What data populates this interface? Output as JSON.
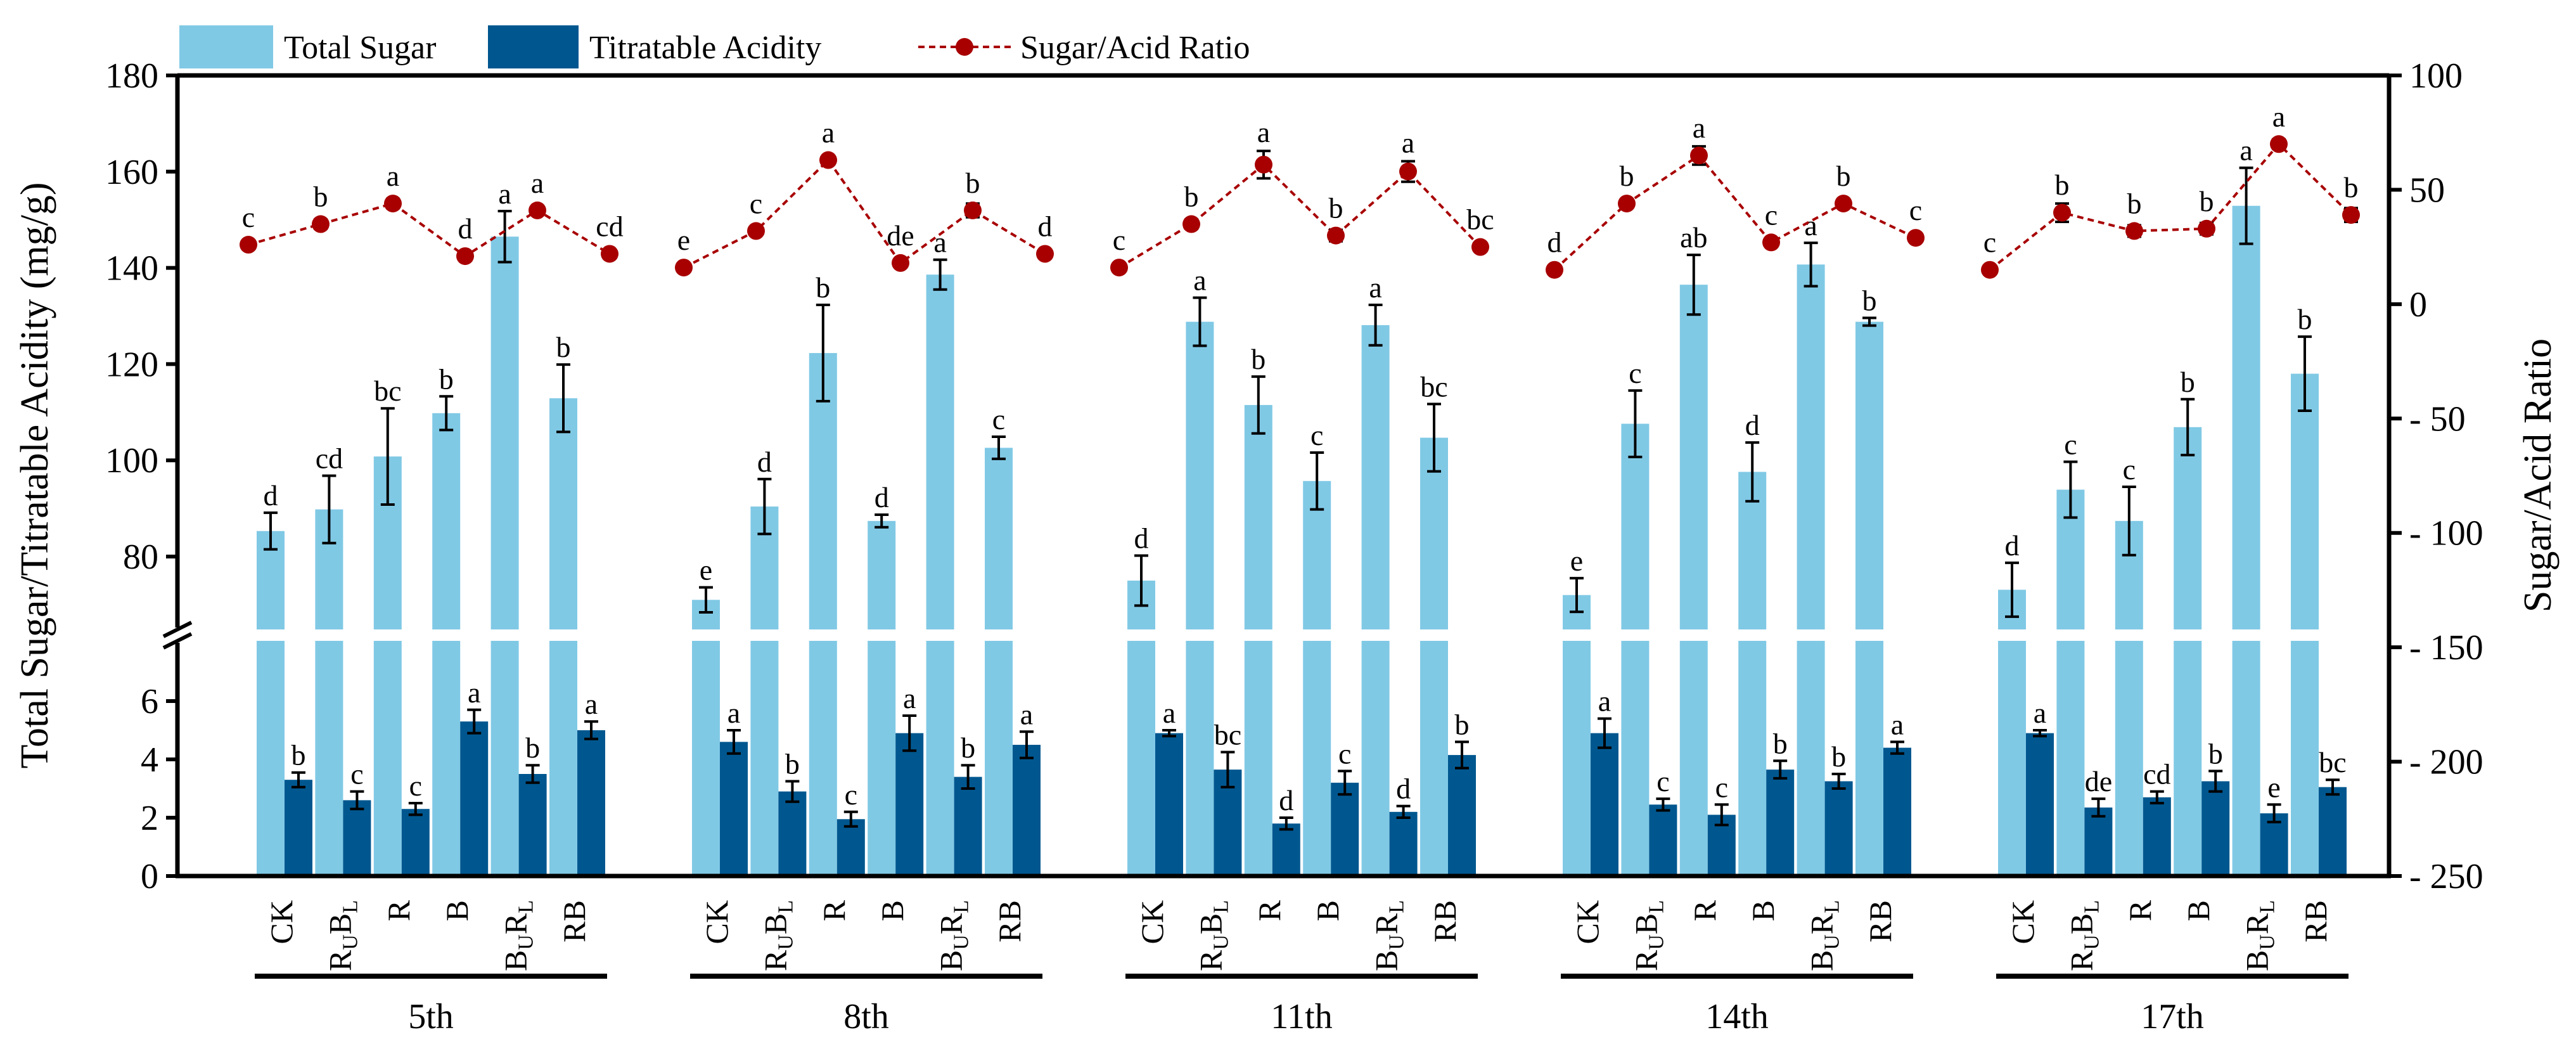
{
  "legend": {
    "sugar": "Total Sugar",
    "acid": "Titratable Acidity",
    "ratio": "Sugar/Acid Ratio"
  },
  "colors": {
    "sugar": "#80c9e5",
    "acid": "#00578f",
    "ratio": "#a80000"
  },
  "chart_data": {
    "type": "bar",
    "title": "",
    "ylabel": "Total Sugar/Titratable Acidity (mg/g)",
    "y2label": "Sugar/Acid Ratio",
    "ylim_upper": [
      65,
      180
    ],
    "ylim_lower": [
      0,
      8
    ],
    "y2lim": [
      -250,
      100
    ],
    "yticks_upper": [
      "80",
      "100",
      "120",
      "140",
      "160",
      "180"
    ],
    "yticks_upper_values": [
      80,
      100,
      120,
      140,
      160,
      180
    ],
    "yticks_lower": [
      "0",
      "2",
      "4",
      "6"
    ],
    "yticks_lower_values": [
      0,
      2,
      4,
      6
    ],
    "y2ticks": [
      "100",
      "50",
      "0",
      "- 50",
      "- 100",
      "- 150",
      "- 200",
      "- 250"
    ],
    "y2ticks_values": [
      100,
      50,
      0,
      -50,
      -100,
      -150,
      -200,
      -250
    ],
    "categories": [
      [
        {
          "t": "CK"
        }
      ],
      [
        {
          "t": "R"
        },
        {
          "t": "U",
          "sub": true
        },
        {
          "t": "B"
        },
        {
          "t": "L",
          "sub": true
        }
      ],
      [
        {
          "t": "R"
        }
      ],
      [
        {
          "t": "B"
        }
      ],
      [
        {
          "t": "B"
        },
        {
          "t": "U",
          "sub": true
        },
        {
          "t": "R"
        },
        {
          "t": "L",
          "sub": true
        }
      ],
      [
        {
          "t": "RB"
        }
      ]
    ],
    "groups": [
      {
        "name": "5th",
        "sugar": [
          85.3,
          89.8,
          100.8,
          109.8,
          146.5,
          112.9
        ],
        "sugar_err": [
          3.8,
          7.0,
          10.0,
          3.5,
          5.3,
          7.0
        ],
        "sugar_sig": [
          "d",
          "cd",
          "bc",
          "b",
          "a",
          "b"
        ],
        "acid": [
          3.3,
          2.6,
          2.3,
          5.3,
          3.5,
          5.0
        ],
        "acid_err": [
          0.25,
          0.3,
          0.2,
          0.4,
          0.3,
          0.3
        ],
        "acid_sig": [
          "b",
          "c",
          "c",
          "a",
          "b",
          "a"
        ],
        "ratio": [
          26,
          35,
          44,
          21,
          41,
          22
        ],
        "ratio_err": [
          1,
          2,
          2,
          1.5,
          1.5,
          1
        ],
        "ratio_sig": [
          "c",
          "b",
          "a",
          "d",
          "a",
          "cd"
        ]
      },
      {
        "name": "8th",
        "sugar": [
          71.0,
          90.4,
          122.3,
          87.4,
          138.6,
          102.6
        ],
        "sugar_err": [
          2.6,
          5.7,
          10.0,
          1.3,
          3.1,
          2.3
        ],
        "sugar_sig": [
          "e",
          "d",
          "b",
          "d",
          "a",
          "c"
        ],
        "acid": [
          4.6,
          2.9,
          1.95,
          4.9,
          3.4,
          4.5
        ],
        "acid_err": [
          0.4,
          0.35,
          0.25,
          0.6,
          0.4,
          0.45
        ],
        "acid_sig": [
          "a",
          "b",
          "c",
          "a",
          "b",
          "a"
        ],
        "ratio": [
          16,
          32,
          63,
          18,
          41,
          22
        ],
        "ratio_err": [
          1,
          1.5,
          1,
          1.5,
          3,
          1
        ],
        "ratio_sig": [
          "e",
          "c",
          "a",
          "de",
          "b",
          "d"
        ]
      },
      {
        "name": "11th",
        "sugar": [
          75.0,
          128.8,
          111.5,
          95.7,
          128.1,
          104.7
        ],
        "sugar_err": [
          5.2,
          5.0,
          5.9,
          5.9,
          4.2,
          7.0
        ],
        "sugar_sig": [
          "d",
          "a",
          "b",
          "c",
          "a",
          "bc"
        ],
        "acid": [
          4.9,
          3.65,
          1.8,
          3.2,
          2.2,
          4.15
        ],
        "acid_err": [
          0.1,
          0.6,
          0.2,
          0.4,
          0.2,
          0.45
        ],
        "acid_sig": [
          "a",
          "bc",
          "d",
          "c",
          "d",
          "b"
        ],
        "ratio": [
          16,
          35,
          61,
          30,
          58,
          25
        ],
        "ratio_err": [
          1,
          2,
          6,
          2.5,
          4.5,
          1.5
        ],
        "ratio_sig": [
          "c",
          "b",
          "a",
          "b",
          "a",
          "bc"
        ]
      },
      {
        "name": "14th",
        "sugar": [
          72.0,
          107.6,
          136.5,
          97.6,
          140.7,
          128.8
        ],
        "sugar_err": [
          3.5,
          6.9,
          6.2,
          6.1,
          4.5,
          0.8
        ],
        "sugar_sig": [
          "e",
          "c",
          "ab",
          "d",
          "a",
          "b"
        ],
        "acid": [
          4.9,
          2.45,
          2.1,
          3.65,
          3.25,
          4.4
        ],
        "acid_err": [
          0.5,
          0.2,
          0.35,
          0.3,
          0.25,
          0.2
        ],
        "acid_sig": [
          "a",
          "c",
          "c",
          "b",
          "b",
          "a"
        ],
        "ratio": [
          15,
          44,
          65,
          27,
          44,
          29
        ],
        "ratio_err": [
          1.5,
          1,
          4,
          1.5,
          1,
          1
        ],
        "ratio_sig": [
          "d",
          "b",
          "a",
          "c",
          "b",
          "c"
        ]
      },
      {
        "name": "17th",
        "sugar": [
          73.1,
          93.9,
          87.4,
          106.9,
          152.9,
          118.0
        ],
        "sugar_err": [
          5.6,
          5.8,
          7.1,
          5.8,
          7.9,
          7.7
        ],
        "sugar_sig": [
          "d",
          "c",
          "c",
          "b",
          "a",
          "b"
        ],
        "acid": [
          4.9,
          2.35,
          2.7,
          3.25,
          2.15,
          3.05
        ],
        "acid_err": [
          0.1,
          0.3,
          0.2,
          0.35,
          0.3,
          0.25
        ],
        "acid_sig": [
          "a",
          "de",
          "cd",
          "b",
          "e",
          "bc"
        ],
        "ratio": [
          15,
          40,
          32,
          33,
          70,
          39
        ],
        "ratio_err": [
          1,
          4,
          2.5,
          2.5,
          2,
          3
        ],
        "ratio_sig": [
          "c",
          "b",
          "b",
          "b",
          "a",
          "b"
        ]
      }
    ]
  }
}
